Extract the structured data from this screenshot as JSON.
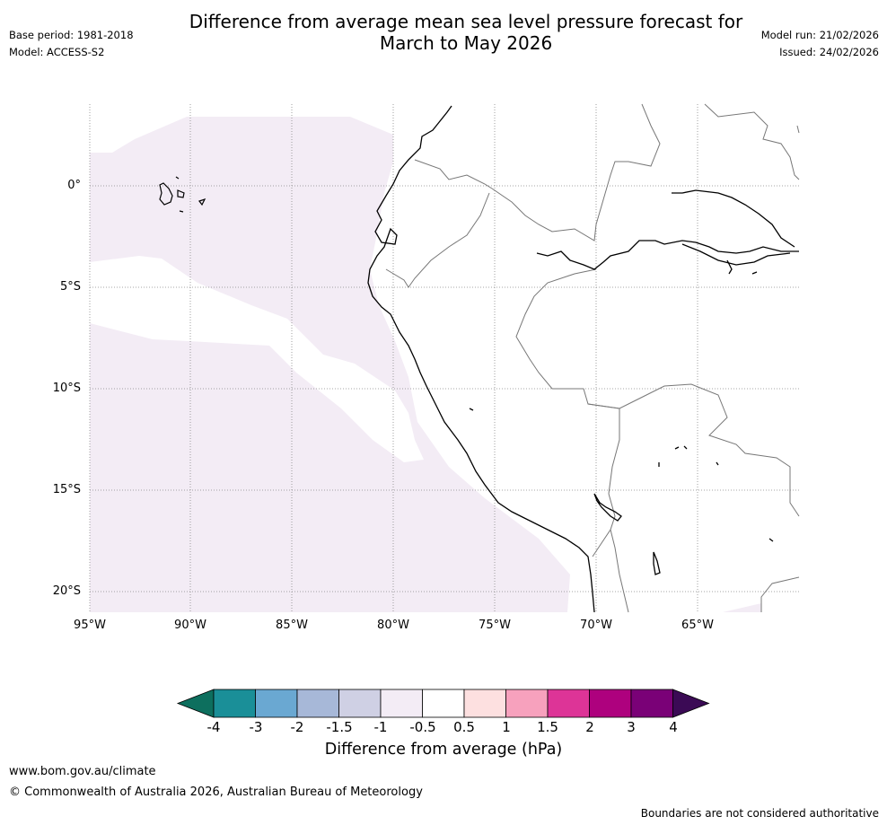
{
  "title_line1": "Difference from average mean sea level pressure forecast for",
  "title_line2": "March to May 2026",
  "base_period": "Base period: 1981-2018",
  "model": "Model: ACCESS-S2",
  "model_run": "Model run: 21/02/2026",
  "issued": "Issued: 24/02/2026",
  "map": {
    "latitude_labels": [
      "0°",
      "5°S",
      "10°S",
      "15°S",
      "20°S"
    ],
    "longitude_labels": [
      "95°W",
      "90°W",
      "85°W",
      "80°W",
      "75°W",
      "70°W",
      "65°W"
    ],
    "region_lat_range": [
      -21,
      4
    ],
    "region_lon_range": [
      -95,
      -60
    ]
  },
  "colorbar": {
    "title": "Difference from average (hPa)",
    "ticks": [
      "-4",
      "-3",
      "-2",
      "-1.5",
      "-1",
      "-0.5",
      "0.5",
      "1",
      "1.5",
      "2",
      "3",
      "4"
    ],
    "low_extend_color": "#0d6f5e",
    "high_extend_color": "#3b0a55",
    "colors": [
      "#1a8f98",
      "#6aa8d2",
      "#a7b8d8",
      "#cfd0e4",
      "#f3ecf5",
      "#ffffff",
      "#fde0e0",
      "#f7a1bd",
      "#dd3497",
      "#ae017e",
      "#7a0177"
    ]
  },
  "anomaly_fill_color": "#f3ecf5",
  "website": "www.bom.gov.au/climate",
  "copyright": "© Commonwealth of Australia 2026, Australian Bureau of Meteorology",
  "disclaimer": "Boundaries are not considered authoritative"
}
